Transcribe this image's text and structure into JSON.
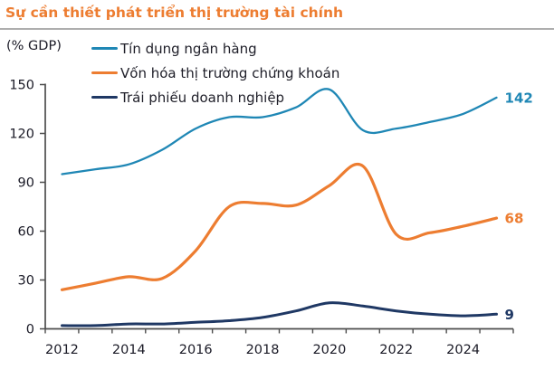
{
  "title": "Sự cần thiết phát triển thị trường tài chính",
  "axis_unit_label": "(% GDP)",
  "colors": {
    "title": "#ED7D31",
    "axis": "#4D4D4D",
    "tick_label": "#1A1A26",
    "divider": "#AEAEAE",
    "background": "#FFFFFF"
  },
  "chart_data": {
    "type": "line",
    "title": "Sự cần thiết phát triển thị trường tài chính",
    "ylabel": "(% GDP)",
    "x": [
      2012,
      2013,
      2014,
      2015,
      2016,
      2017,
      2018,
      2019,
      2020,
      2021,
      2022,
      2023,
      2024,
      2025
    ],
    "x_tick_labels": [
      "2012",
      "2014",
      "2016",
      "2018",
      "2020",
      "2022",
      "2024"
    ],
    "y_ticks": [
      0,
      30,
      60,
      90,
      120,
      150
    ],
    "ylim": [
      0,
      150
    ],
    "grid": false,
    "legend_position": "top-left",
    "series": [
      {
        "name": "Tín dụng ngân hàng",
        "color": "#1F87B5",
        "stroke_width": 2.3,
        "end_label": "142",
        "values": [
          95,
          98,
          101,
          110,
          123,
          130,
          130,
          136,
          147,
          122,
          123,
          127,
          132,
          142
        ]
      },
      {
        "name": "Vốn hóa thị trường chứng khoán",
        "color": "#ED7D31",
        "stroke_width": 3.2,
        "end_label": "68",
        "values": [
          24,
          28,
          32,
          31,
          48,
          75,
          77,
          76,
          88,
          100,
          58,
          59,
          63,
          68
        ]
      },
      {
        "name": "Trái phiếu doanh nghiệp",
        "color": "#1F3864",
        "stroke_width": 3.0,
        "end_label": "9",
        "values": [
          2,
          2,
          3,
          3,
          4,
          5,
          7,
          11,
          16,
          14,
          11,
          9,
          8,
          9
        ]
      }
    ]
  }
}
